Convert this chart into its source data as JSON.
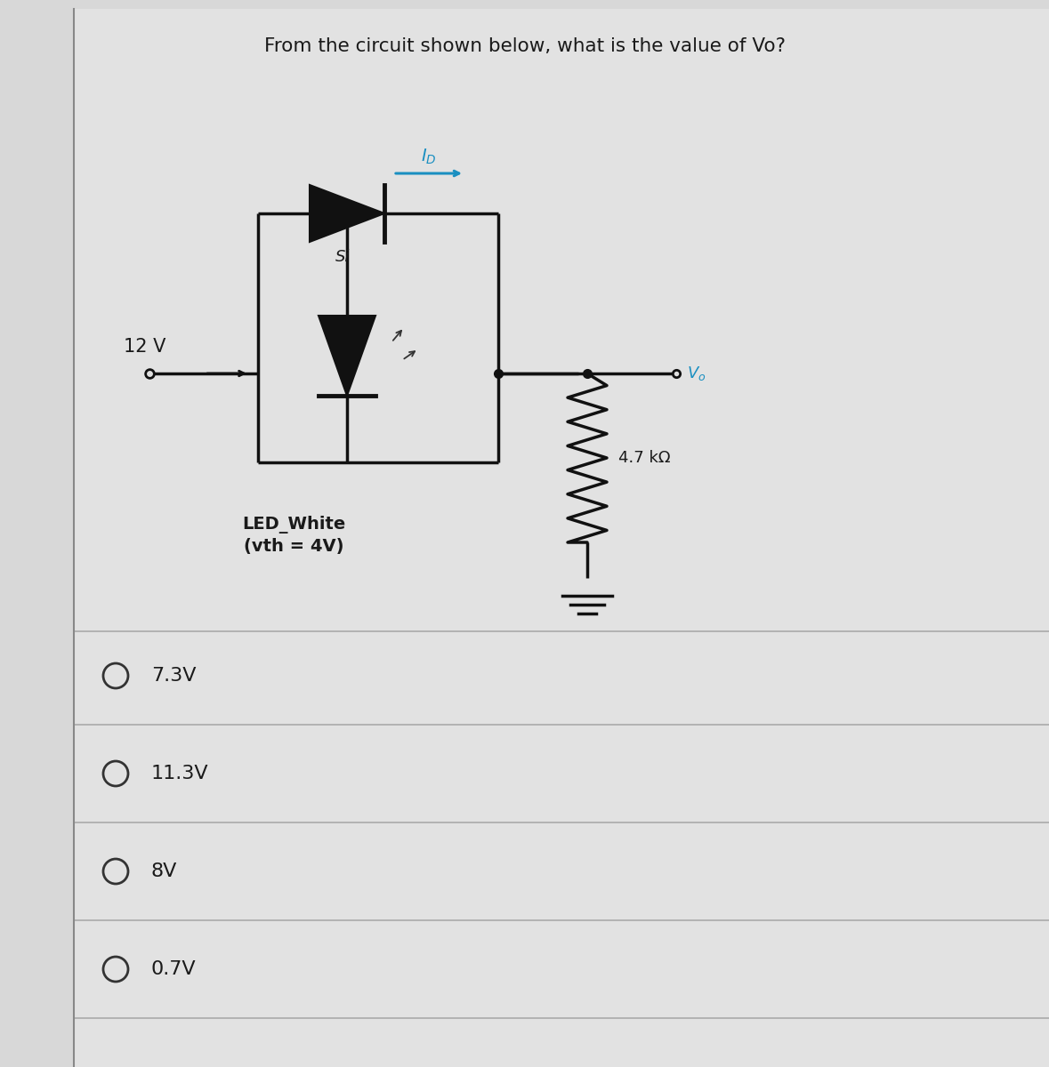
{
  "title": "From the circuit shown below, what is the value of Vo?",
  "title_fontsize": 15.5,
  "bg_color": "#d8d8d8",
  "white_panel_color": "#e0e0e0",
  "voltage_source": "12 V",
  "si_label": "Si",
  "led_label1": "LED_White",
  "led_label2": "(vth = 4V)",
  "resistor_label": "4.7 kΩ",
  "vo_label": "Vₒ",
  "current_label": "I_D",
  "options": [
    "7.3V",
    "11.3V",
    "8V",
    "0.7V"
  ],
  "option_fontsize": 16,
  "text_color": "#1a1a1a",
  "cc": "#111111",
  "current_color": "#1a8fc1",
  "option_circle_color": "#333333",
  "divider_color": "#aaaaaa",
  "left_border_color": "#888888"
}
